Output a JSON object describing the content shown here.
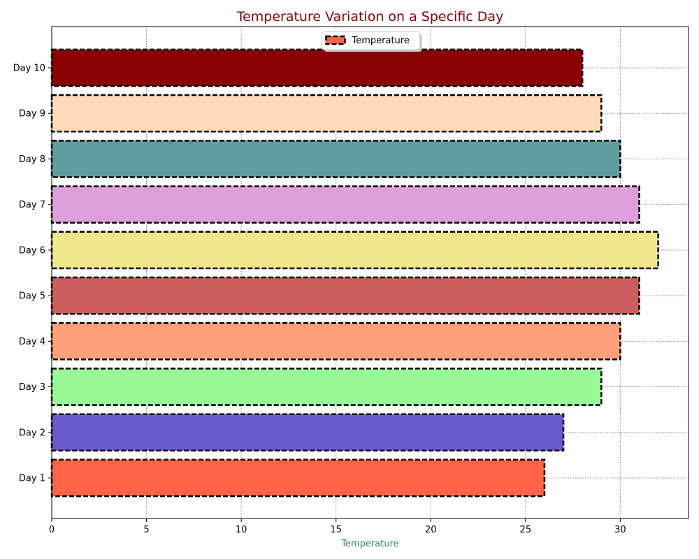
{
  "chart_data": {
    "type": "bar",
    "orientation": "horizontal",
    "title": "Temperature Variation on a Specific Day",
    "xlabel": "Temperature",
    "ylabel": "",
    "categories": [
      "Day 1",
      "Day 2",
      "Day 3",
      "Day 4",
      "Day 5",
      "Day 6",
      "Day 7",
      "Day 8",
      "Day 9",
      "Day 10"
    ],
    "series": [
      {
        "name": "Temperature",
        "values": [
          26,
          27,
          29,
          30,
          31,
          32,
          31,
          30,
          29,
          28
        ]
      }
    ],
    "bar_colors": [
      "#ff6347",
      "#6a5acd",
      "#98fb98",
      "#ffa07a",
      "#cd5c5c",
      "#f0e68c",
      "#dda0dd",
      "#5f9ea0",
      "#ffdab9",
      "#8b0000"
    ],
    "bar_edge_color": "#000000",
    "bar_edge_style": "dashed",
    "xlim": [
      0,
      33.6
    ],
    "xticks": [
      0,
      5,
      10,
      15,
      20,
      25,
      30
    ],
    "grid": true,
    "grid_style": "dotted",
    "legend_position": "top-center",
    "title_color": "#8b0000",
    "xlabel_color": "#2e8b57"
  }
}
